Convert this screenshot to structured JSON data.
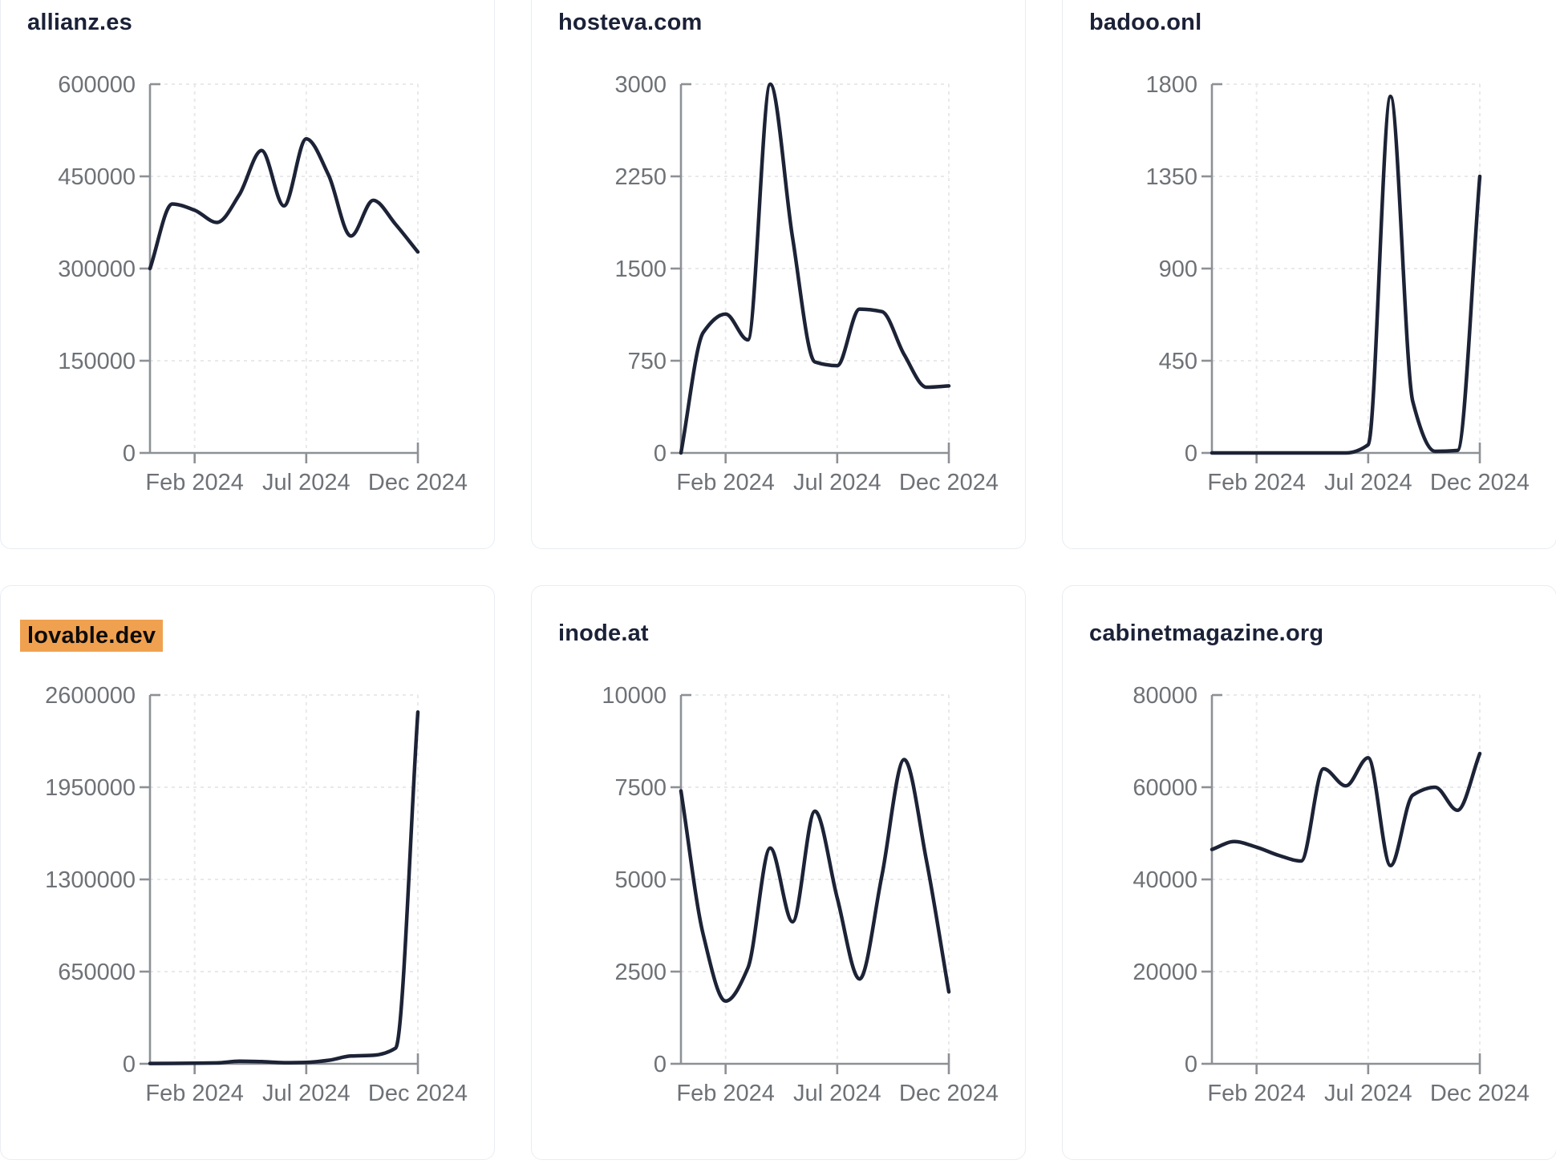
{
  "theme": {
    "background": "#ffffff",
    "card_border": "#e9edf1",
    "title_color": "#1b2137",
    "line_color": "#1d2336",
    "axis_color": "#8d9095",
    "grid_color": "#e8e9eb",
    "tick_label_color": "#6e7277",
    "highlight_bg": "#f0a150",
    "highlight_text": "#0c0c0c"
  },
  "cards": [
    {
      "title": "allianz.es",
      "highlighted": false
    },
    {
      "title": "hosteva.com",
      "highlighted": false
    },
    {
      "title": "badoo.onl",
      "highlighted": false
    },
    {
      "title": "lovable.dev",
      "highlighted": true
    },
    {
      "title": "inode.at",
      "highlighted": false
    },
    {
      "title": "cabinetmagazine.org",
      "highlighted": false
    }
  ],
  "chart_data": [
    {
      "type": "line",
      "title": "allianz.es",
      "x": [
        "Dec 2023",
        "Jan 2024",
        "Feb 2024",
        "Mar 2024",
        "Apr 2024",
        "May 2024",
        "Jun 2024",
        "Jul 2024",
        "Aug 2024",
        "Sep 2024",
        "Oct 2024",
        "Nov 2024",
        "Dec 2024"
      ],
      "values": [
        300000,
        405000,
        395000,
        375000,
        420000,
        492000,
        402000,
        511000,
        452000,
        353000,
        411000,
        372000,
        327000
      ],
      "ylim": [
        0,
        600000
      ],
      "y_ticks": [
        0,
        150000,
        300000,
        450000,
        600000
      ],
      "x_tick_labels": [
        "Feb 2024",
        "Jul 2024",
        "Dec 2024"
      ],
      "x_tick_positions": [
        2,
        7,
        12
      ],
      "grid": "dashed",
      "legend": "none"
    },
    {
      "type": "line",
      "title": "hosteva.com",
      "x": [
        "Dec 2023",
        "Jan 2024",
        "Feb 2024",
        "Mar 2024",
        "Apr 2024",
        "May 2024",
        "Jun 2024",
        "Jul 2024",
        "Aug 2024",
        "Sep 2024",
        "Oct 2024",
        "Nov 2024",
        "Dec 2024"
      ],
      "values": [
        0,
        980,
        1130,
        920,
        3000,
        1750,
        740,
        710,
        1170,
        1150,
        800,
        535,
        545
      ],
      "ylim": [
        0,
        3000
      ],
      "y_ticks": [
        0,
        750,
        1500,
        2250,
        3000
      ],
      "x_tick_labels": [
        "Feb 2024",
        "Jul 2024",
        "Dec 2024"
      ],
      "x_tick_positions": [
        2,
        7,
        12
      ],
      "grid": "dashed",
      "legend": "none"
    },
    {
      "type": "line",
      "title": "badoo.onl",
      "x": [
        "Dec 2023",
        "Jan 2024",
        "Feb 2024",
        "Mar 2024",
        "Apr 2024",
        "May 2024",
        "Jun 2024",
        "Jul 2024",
        "Aug 2024",
        "Sep 2024",
        "Oct 2024",
        "Nov 2024",
        "Dec 2024"
      ],
      "values": [
        0,
        0,
        0,
        0,
        0,
        0,
        0,
        40,
        1740,
        250,
        8,
        12,
        1350
      ],
      "ylim": [
        0,
        1800
      ],
      "y_ticks": [
        0,
        450,
        900,
        1350,
        1800
      ],
      "x_tick_labels": [
        "Feb 2024",
        "Jul 2024",
        "Dec 2024"
      ],
      "x_tick_positions": [
        2,
        7,
        12
      ],
      "grid": "dashed",
      "legend": "none"
    },
    {
      "type": "line",
      "title": "lovable.dev",
      "x": [
        "Dec 2023",
        "Jan 2024",
        "Feb 2024",
        "Mar 2024",
        "Apr 2024",
        "May 2024",
        "Jun 2024",
        "Jul 2024",
        "Aug 2024",
        "Sep 2024",
        "Oct 2024",
        "Nov 2024",
        "Dec 2024"
      ],
      "values": [
        2000,
        3000,
        4000,
        6000,
        18000,
        15000,
        8000,
        10000,
        25000,
        55000,
        60000,
        110000,
        2480000
      ],
      "ylim": [
        0,
        2600000
      ],
      "y_ticks": [
        0,
        650000,
        1300000,
        1950000,
        2600000
      ],
      "x_tick_labels": [
        "Feb 2024",
        "Jul 2024",
        "Dec 2024"
      ],
      "x_tick_positions": [
        2,
        7,
        12
      ],
      "grid": "dashed",
      "legend": "none"
    },
    {
      "type": "line",
      "title": "inode.at",
      "x": [
        "Dec 2023",
        "Jan 2024",
        "Feb 2024",
        "Mar 2024",
        "Apr 2024",
        "May 2024",
        "Jun 2024",
        "Jul 2024",
        "Aug 2024",
        "Sep 2024",
        "Oct 2024",
        "Nov 2024",
        "Dec 2024"
      ],
      "values": [
        7400,
        3500,
        1700,
        2600,
        5850,
        3850,
        6850,
        4500,
        2300,
        5100,
        8250,
        5500,
        1950
      ],
      "ylim": [
        0,
        10000
      ],
      "y_ticks": [
        0,
        2500,
        5000,
        7500,
        10000
      ],
      "x_tick_labels": [
        "Feb 2024",
        "Jul 2024",
        "Dec 2024"
      ],
      "x_tick_positions": [
        2,
        7,
        12
      ],
      "grid": "dashed",
      "legend": "none"
    },
    {
      "type": "line",
      "title": "cabinetmagazine.org",
      "x": [
        "Dec 2023",
        "Jan 2024",
        "Feb 2024",
        "Mar 2024",
        "Apr 2024",
        "May 2024",
        "Jun 2024",
        "Jul 2024",
        "Aug 2024",
        "Sep 2024",
        "Oct 2024",
        "Nov 2024",
        "Dec 2024"
      ],
      "values": [
        46500,
        48200,
        47000,
        45200,
        44000,
        64000,
        60300,
        66400,
        43000,
        58300,
        60000,
        55000,
        67300
      ],
      "ylim": [
        0,
        80000
      ],
      "y_ticks": [
        0,
        20000,
        40000,
        60000,
        80000
      ],
      "x_tick_labels": [
        "Feb 2024",
        "Jul 2024",
        "Dec 2024"
      ],
      "x_tick_positions": [
        2,
        7,
        12
      ],
      "grid": "dashed",
      "legend": "none"
    }
  ]
}
